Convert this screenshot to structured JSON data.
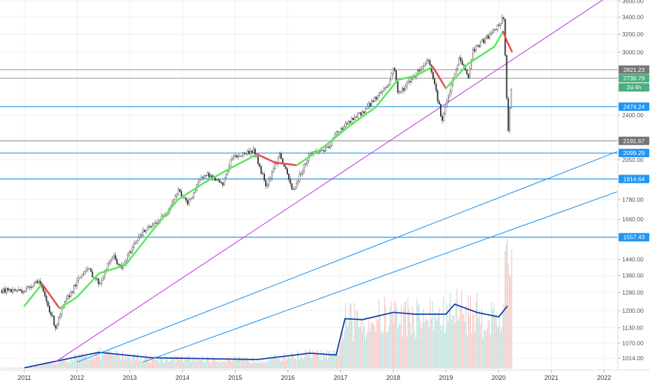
{
  "chart_data": {
    "type": "line",
    "title": "",
    "x_ticks": [
      "2011",
      "2012",
      "2013",
      "2014",
      "2015",
      "2016",
      "2017",
      "2018",
      "2019",
      "2020",
      "2021",
      "2022"
    ],
    "y_ticks": [
      3600.0,
      3400.0,
      3200.0,
      3000.0,
      2400.0,
      2050.0,
      1780.0,
      1660.0,
      1440.0,
      1360.0,
      1280.0,
      1200.0,
      1130.0,
      1070.0,
      1014.0
    ],
    "y_tick_labels": [
      "3600.00",
      "3400.00",
      "3200.00",
      "3000.00",
      "2400.00",
      "2050.00",
      "1780.00",
      "1660.00",
      "1440.00",
      "1360.00",
      "1280.00",
      "1200.00",
      "1130.00",
      "1070.00",
      "1014.00"
    ],
    "price_series": {
      "name": "",
      "points": [
        [
          "2011-01",
          1290
        ],
        [
          "2011-04",
          1340
        ],
        [
          "2011-08",
          1130
        ],
        [
          "2011-10",
          1230
        ],
        [
          "2012-03",
          1400
        ],
        [
          "2012-06",
          1320
        ],
        [
          "2012-09",
          1460
        ],
        [
          "2012-11",
          1390
        ],
        [
          "2013-03",
          1570
        ],
        [
          "2013-06",
          1620
        ],
        [
          "2013-09",
          1690
        ],
        [
          "2013-12",
          1840
        ],
        [
          "2014-02",
          1750
        ],
        [
          "2014-06",
          1960
        ],
        [
          "2014-10",
          1870
        ],
        [
          "2014-12",
          2060
        ],
        [
          "2015-05",
          2120
        ],
        [
          "2015-08",
          1870
        ],
        [
          "2015-11",
          2090
        ],
        [
          "2016-02",
          1830
        ],
        [
          "2016-06",
          2100
        ],
        [
          "2016-10",
          2130
        ],
        [
          "2016-12",
          2260
        ],
        [
          "2017-06",
          2430
        ],
        [
          "2017-12",
          2690
        ],
        [
          "2018-01",
          2870
        ],
        [
          "2018-02",
          2580
        ],
        [
          "2018-09",
          2930
        ],
        [
          "2018-12",
          2350
        ],
        [
          "2019-04",
          2945
        ],
        [
          "2019-06",
          2740
        ],
        [
          "2019-07",
          3020
        ],
        [
          "2019-12",
          3240
        ],
        [
          "2020-02",
          3390
        ],
        [
          "2020-03",
          2237
        ],
        [
          "2020-04",
          2736.79
        ]
      ]
    },
    "ma_points": [
      [
        "2011-01",
        1220
      ],
      [
        "2011-05",
        1320
      ],
      [
        "2011-09",
        1210
      ],
      [
        "2012-01",
        1260
      ],
      [
        "2012-06",
        1370
      ],
      [
        "2012-12",
        1410
      ],
      [
        "2013-06",
        1590
      ],
      [
        "2013-12",
        1780
      ],
      [
        "2014-06",
        1890
      ],
      [
        "2014-12",
        1990
      ],
      [
        "2015-06",
        2090
      ],
      [
        "2015-10",
        2030
      ],
      [
        "2016-03",
        2010
      ],
      [
        "2016-09",
        2140
      ],
      [
        "2017-03",
        2310
      ],
      [
        "2017-09",
        2470
      ],
      [
        "2018-02",
        2720
      ],
      [
        "2018-06",
        2760
      ],
      [
        "2018-10",
        2850
      ],
      [
        "2019-01",
        2640
      ],
      [
        "2019-06",
        2880
      ],
      [
        "2019-12",
        3060
      ],
      [
        "2020-02",
        3230
      ],
      [
        "2020-03",
        3110
      ],
      [
        "2020-04",
        3010
      ]
    ],
    "horizontal_levels": [
      {
        "value": 2821.23,
        "label": "2821.23",
        "color": "#9e9e9e",
        "badge_color": "#757575"
      },
      {
        "value": 2736.79,
        "label": "2736.79",
        "color": "#9e9e9e",
        "badge_color": "#4caf7d"
      },
      {
        "value": 2474.24,
        "label": "2474.24",
        "color": "#2196f3",
        "badge_color": "#2196f3"
      },
      {
        "value": 2191.67,
        "label": "2191.67",
        "color": "#9e9e9e",
        "badge_color": "#757575"
      },
      {
        "value": 2099.29,
        "label": "2099.29",
        "color": "#2196f3",
        "badge_color": "#2196f3"
      },
      {
        "value": 1914.64,
        "label": "1914.64",
        "color": "#2196f3",
        "badge_color": "#2196f3"
      },
      {
        "value": 1557.43,
        "label": "1557.43",
        "color": "#2196f3",
        "badge_color": "#2196f3"
      }
    ],
    "countdown_label": "2d 4h",
    "trendlines": [
      {
        "color": "#c03ee0",
        "from": [
          "2011-08",
          1000
        ],
        "to": [
          "2022-03",
          3700
        ]
      },
      {
        "color": "#2196f3",
        "from": [
          "2012-01",
          1000
        ],
        "to": [
          "2022-04",
          2110
        ]
      },
      {
        "color": "#2196f3",
        "from": [
          "2013-04",
          1000
        ],
        "to": [
          "2022-04",
          1830
        ]
      }
    ],
    "volume_ma_points": [
      [
        "2011-01",
        0.01
      ],
      [
        "2012-06",
        0.18
      ],
      [
        "2013-06",
        0.12
      ],
      [
        "2015-06",
        0.1
      ],
      [
        "2016-06",
        0.17
      ],
      [
        "2016-12",
        0.15
      ],
      [
        "2017-02",
        0.55
      ],
      [
        "2017-06",
        0.54
      ],
      [
        "2018-01",
        0.62
      ],
      [
        "2018-06",
        0.6
      ],
      [
        "2019-01",
        0.6
      ],
      [
        "2019-03",
        0.71
      ],
      [
        "2019-08",
        0.62
      ],
      [
        "2020-01",
        0.57
      ],
      [
        "2020-03",
        0.69
      ]
    ],
    "colors": {
      "up": "#26a69a",
      "down": "#ef5350",
      "ma_up": "#5ee85e",
      "ma_down": "#e84c4c",
      "volume_ma": "#0d3ea6",
      "grid": "#f0f0f0"
    },
    "grid": true
  }
}
